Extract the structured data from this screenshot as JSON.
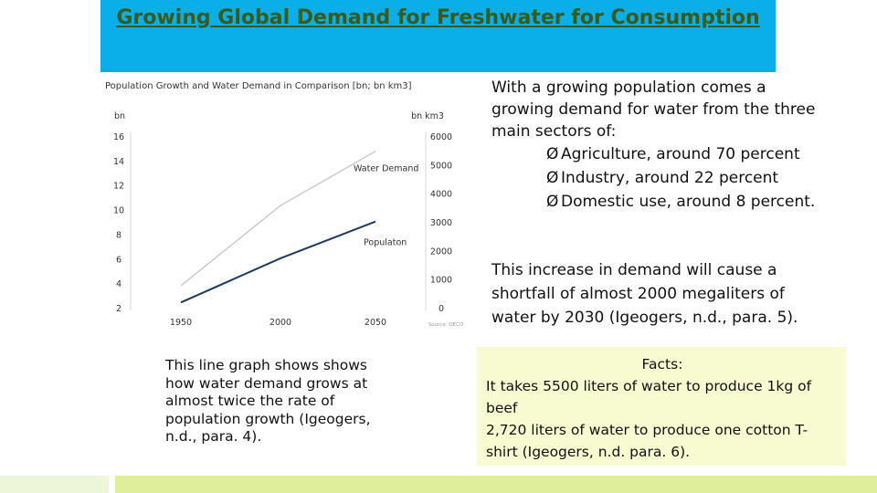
{
  "title": "Growing Global Demand for Freshwater for Consumption",
  "intro": "With a growing population comes a growing demand for water from the three main sectors of:",
  "bullet_marker": "Ø",
  "bullets": [
    "Agriculture, around 70 percent",
    "Industry, around 22 percent",
    "Domestic use, around 8 percent."
  ],
  "shortfall": "This increase in demand will cause a shortfall of almost 2000 megaliters of water by 2030 (Igeogers, n.d., para. 5).",
  "caption": "This line graph shows shows how water demand grows at almost twice the rate of population growth (Igeogers, n.d., para. 4).",
  "facts": {
    "heading": "Facts:",
    "line1": "It takes 5500 liters of water to produce 1kg of beef",
    "line2": "2,720 liters of water to produce one cotton T-shirt (Igeogers, n.d. para. 6)."
  },
  "colors": {
    "title_bar": "#0aaee8",
    "title_text": "#3a5a16",
    "facts_bg": "#f8fbd0",
    "water_line": "#c8c8c8",
    "population_line": "#1e3a5f"
  },
  "chart_data": {
    "type": "line",
    "title": "Population Growth and Water Demand in Comparison [bn; bn km3]",
    "x": [
      1950,
      2000,
      2050
    ],
    "left_axis": {
      "unit": "bn",
      "ticks": [
        "2",
        "4",
        "6",
        "8",
        "10",
        "12",
        "14",
        "16"
      ],
      "ylim": [
        2,
        16
      ]
    },
    "right_axis": {
      "unit": "bn km3",
      "ticks": [
        "0",
        "1000",
        "2000",
        "3000",
        "4000",
        "5000",
        "6000"
      ],
      "ylim": [
        0,
        6000
      ]
    },
    "series": [
      {
        "name": "Water Demand",
        "axis": "right",
        "values": [
          800,
          3600,
          5500
        ]
      },
      {
        "name": "Populaton",
        "axis": "left",
        "values": [
          2.5,
          6.1,
          9.1
        ]
      }
    ],
    "source": "Source: OECD",
    "grid": false
  }
}
